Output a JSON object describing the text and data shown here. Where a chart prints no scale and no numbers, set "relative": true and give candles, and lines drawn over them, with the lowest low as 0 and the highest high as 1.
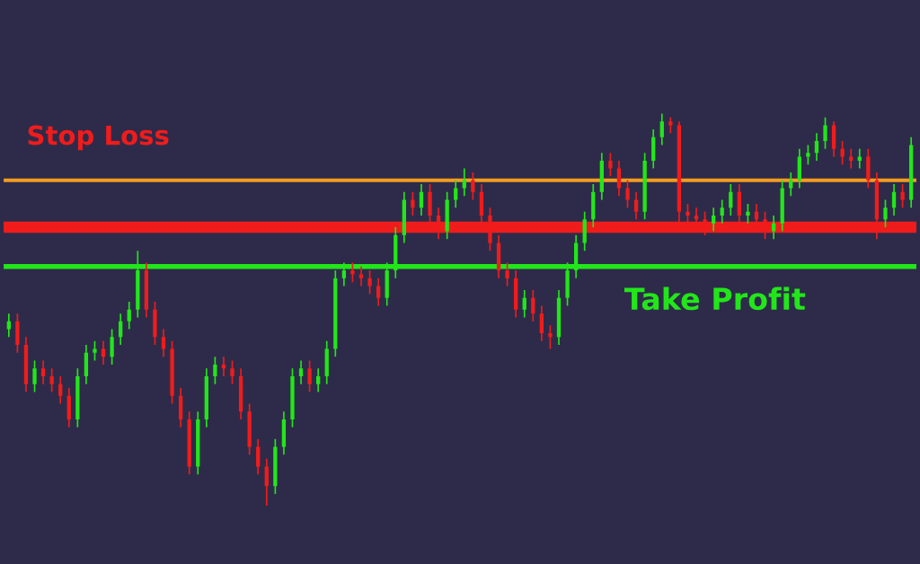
{
  "chart_data": {
    "type": "candlestick",
    "relative": true,
    "categories": [
      null,
      null,
      null,
      null,
      null,
      null,
      null,
      null,
      null,
      null,
      null,
      null,
      null,
      null,
      null,
      null,
      null,
      null,
      null,
      null,
      null,
      null,
      null,
      null,
      null,
      null,
      null,
      null,
      null,
      null,
      null,
      null,
      null,
      null,
      null,
      null,
      null,
      null,
      null,
      null,
      null,
      null,
      null,
      null,
      null,
      null,
      null,
      null,
      null,
      null,
      null,
      null,
      null,
      null,
      null,
      null,
      null,
      null,
      null,
      null,
      null,
      null,
      null,
      null,
      null,
      null,
      null,
      null,
      null,
      null,
      null,
      null,
      null,
      null,
      null,
      null,
      null,
      null,
      null,
      null,
      null,
      null,
      null,
      null,
      null,
      null,
      null,
      null,
      null,
      null,
      null,
      null,
      null,
      null,
      null,
      null,
      null,
      null,
      null,
      null,
      null,
      null,
      null,
      null,
      null,
      null
    ],
    "ohlc": [
      [
        0.45,
        0.49,
        0.43,
        0.47
      ],
      [
        0.47,
        0.49,
        0.39,
        0.41
      ],
      [
        0.41,
        0.43,
        0.29,
        0.31
      ],
      [
        0.31,
        0.37,
        0.29,
        0.35
      ],
      [
        0.35,
        0.37,
        0.31,
        0.33
      ],
      [
        0.33,
        0.35,
        0.29,
        0.31
      ],
      [
        0.31,
        0.33,
        0.26,
        0.28
      ],
      [
        0.28,
        0.3,
        0.2,
        0.22
      ],
      [
        0.22,
        0.35,
        0.2,
        0.33
      ],
      [
        0.33,
        0.41,
        0.31,
        0.39
      ],
      [
        0.39,
        0.42,
        0.37,
        0.4
      ],
      [
        0.4,
        0.42,
        0.36,
        0.38
      ],
      [
        0.38,
        0.45,
        0.36,
        0.43
      ],
      [
        0.43,
        0.49,
        0.41,
        0.47
      ],
      [
        0.47,
        0.52,
        0.45,
        0.5
      ],
      [
        0.5,
        0.65,
        0.48,
        0.6
      ],
      [
        0.6,
        0.62,
        0.48,
        0.5
      ],
      [
        0.5,
        0.52,
        0.41,
        0.43
      ],
      [
        0.43,
        0.45,
        0.38,
        0.4
      ],
      [
        0.4,
        0.42,
        0.26,
        0.28
      ],
      [
        0.28,
        0.3,
        0.2,
        0.22
      ],
      [
        0.22,
        0.24,
        0.08,
        0.1
      ],
      [
        0.1,
        0.24,
        0.08,
        0.22
      ],
      [
        0.22,
        0.35,
        0.2,
        0.33
      ],
      [
        0.33,
        0.38,
        0.31,
        0.36
      ],
      [
        0.36,
        0.38,
        0.33,
        0.35
      ],
      [
        0.35,
        0.37,
        0.31,
        0.33
      ],
      [
        0.33,
        0.35,
        0.22,
        0.24
      ],
      [
        0.24,
        0.26,
        0.13,
        0.15
      ],
      [
        0.15,
        0.17,
        0.08,
        0.1
      ],
      [
        0.1,
        0.12,
        0.0,
        0.05
      ],
      [
        0.05,
        0.17,
        0.03,
        0.15
      ],
      [
        0.15,
        0.24,
        0.13,
        0.22
      ],
      [
        0.22,
        0.35,
        0.2,
        0.33
      ],
      [
        0.33,
        0.37,
        0.31,
        0.35
      ],
      [
        0.35,
        0.37,
        0.29,
        0.31
      ],
      [
        0.31,
        0.35,
        0.29,
        0.33
      ],
      [
        0.33,
        0.42,
        0.31,
        0.4
      ],
      [
        0.4,
        0.6,
        0.38,
        0.58
      ],
      [
        0.58,
        0.62,
        0.56,
        0.6
      ],
      [
        0.6,
        0.62,
        0.57,
        0.59
      ],
      [
        0.59,
        0.61,
        0.56,
        0.58
      ],
      [
        0.58,
        0.6,
        0.54,
        0.56
      ],
      [
        0.56,
        0.58,
        0.51,
        0.53
      ],
      [
        0.53,
        0.62,
        0.51,
        0.6
      ],
      [
        0.6,
        0.71,
        0.58,
        0.69
      ],
      [
        0.69,
        0.8,
        0.67,
        0.78
      ],
      [
        0.78,
        0.8,
        0.74,
        0.76
      ],
      [
        0.76,
        0.82,
        0.74,
        0.8
      ],
      [
        0.8,
        0.82,
        0.72,
        0.74
      ],
      [
        0.74,
        0.76,
        0.68,
        0.7
      ],
      [
        0.7,
        0.8,
        0.68,
        0.78
      ],
      [
        0.78,
        0.83,
        0.76,
        0.81
      ],
      [
        0.81,
        0.86,
        0.79,
        0.83
      ],
      [
        0.83,
        0.85,
        0.78,
        0.8
      ],
      [
        0.8,
        0.82,
        0.72,
        0.74
      ],
      [
        0.74,
        0.76,
        0.65,
        0.67
      ],
      [
        0.67,
        0.69,
        0.58,
        0.6
      ],
      [
        0.6,
        0.62,
        0.56,
        0.58
      ],
      [
        0.58,
        0.6,
        0.48,
        0.5
      ],
      [
        0.5,
        0.55,
        0.48,
        0.53
      ],
      [
        0.53,
        0.55,
        0.47,
        0.49
      ],
      [
        0.49,
        0.51,
        0.42,
        0.44
      ],
      [
        0.44,
        0.46,
        0.4,
        0.43
      ],
      [
        0.43,
        0.55,
        0.41,
        0.53
      ],
      [
        0.53,
        0.62,
        0.51,
        0.6
      ],
      [
        0.6,
        0.69,
        0.58,
        0.67
      ],
      [
        0.67,
        0.75,
        0.65,
        0.73
      ],
      [
        0.73,
        0.82,
        0.71,
        0.8
      ],
      [
        0.8,
        0.9,
        0.78,
        0.88
      ],
      [
        0.88,
        0.9,
        0.84,
        0.86
      ],
      [
        0.86,
        0.88,
        0.79,
        0.81
      ],
      [
        0.81,
        0.83,
        0.76,
        0.78
      ],
      [
        0.78,
        0.8,
        0.73,
        0.75
      ],
      [
        0.75,
        0.9,
        0.73,
        0.88
      ],
      [
        0.88,
        0.96,
        0.86,
        0.94
      ],
      [
        0.94,
        1.0,
        0.92,
        0.98
      ],
      [
        0.98,
        0.99,
        0.95,
        0.97
      ],
      [
        0.97,
        0.98,
        0.72,
        0.75
      ],
      [
        0.75,
        0.77,
        0.72,
        0.74
      ],
      [
        0.74,
        0.76,
        0.71,
        0.73
      ],
      [
        0.73,
        0.75,
        0.69,
        0.72
      ],
      [
        0.72,
        0.76,
        0.7,
        0.74
      ],
      [
        0.74,
        0.78,
        0.72,
        0.76
      ],
      [
        0.76,
        0.82,
        0.74,
        0.8
      ],
      [
        0.8,
        0.82,
        0.72,
        0.74
      ],
      [
        0.74,
        0.77,
        0.72,
        0.75
      ],
      [
        0.75,
        0.77,
        0.71,
        0.73
      ],
      [
        0.73,
        0.75,
        0.68,
        0.7
      ],
      [
        0.7,
        0.74,
        0.68,
        0.72
      ],
      [
        0.72,
        0.83,
        0.7,
        0.81
      ],
      [
        0.81,
        0.85,
        0.79,
        0.83
      ],
      [
        0.83,
        0.91,
        0.81,
        0.89
      ],
      [
        0.89,
        0.92,
        0.87,
        0.9
      ],
      [
        0.9,
        0.95,
        0.88,
        0.93
      ],
      [
        0.93,
        0.99,
        0.91,
        0.97
      ],
      [
        0.97,
        0.98,
        0.89,
        0.91
      ],
      [
        0.91,
        0.93,
        0.87,
        0.89
      ],
      [
        0.89,
        0.91,
        0.86,
        0.88
      ],
      [
        0.88,
        0.91,
        0.86,
        0.89
      ],
      [
        0.89,
        0.91,
        0.81,
        0.83
      ],
      [
        0.83,
        0.85,
        0.68,
        0.73
      ],
      [
        0.73,
        0.78,
        0.71,
        0.76
      ],
      [
        0.76,
        0.82,
        0.74,
        0.8
      ],
      [
        0.8,
        0.82,
        0.76,
        0.78
      ],
      [
        0.78,
        0.94,
        0.76,
        0.92
      ]
    ],
    "colors": [
      "#22e61a",
      "#f01c1c",
      "#f01c1c",
      "#22e61a",
      "#f01c1c",
      "#f01c1c",
      "#f01c1c",
      "#f01c1c",
      "#22e61a",
      "#22e61a",
      "#22e61a",
      "#f01c1c",
      "#22e61a",
      "#22e61a",
      "#22e61a",
      "#22e61a",
      "#f01c1c",
      "#f01c1c",
      "#f01c1c",
      "#f01c1c",
      "#f01c1c",
      "#f01c1c",
      "#22e61a",
      "#22e61a",
      "#22e61a",
      "#f01c1c",
      "#f01c1c",
      "#f01c1c",
      "#f01c1c",
      "#f01c1c",
      "#f01c1c",
      "#22e61a",
      "#22e61a",
      "#22e61a",
      "#22e61a",
      "#f01c1c",
      "#22e61a",
      "#22e61a",
      "#22e61a",
      "#22e61a",
      "#f01c1c",
      "#f01c1c",
      "#f01c1c",
      "#f01c1c",
      "#22e61a",
      "#22e61a",
      "#22e61a",
      "#f01c1c",
      "#22e61a",
      "#f01c1c",
      "#f01c1c",
      "#22e61a",
      "#22e61a",
      "#22e61a",
      "#f01c1c",
      "#f01c1c",
      "#f01c1c",
      "#f01c1c",
      "#f01c1c",
      "#f01c1c",
      "#22e61a",
      "#f01c1c",
      "#f01c1c",
      "#f01c1c",
      "#22e61a",
      "#22e61a",
      "#22e61a",
      "#22e61a",
      "#22e61a",
      "#22e61a",
      "#f01c1c",
      "#f01c1c",
      "#f01c1c",
      "#f01c1c",
      "#22e61a",
      "#22e61a",
      "#22e61a",
      "#f01c1c",
      "#f01c1c",
      "#f01c1c",
      "#f01c1c",
      "#f01c1c",
      "#22e61a",
      "#22e61a",
      "#22e61a",
      "#f01c1c",
      "#22e61a",
      "#f01c1c",
      "#f01c1c",
      "#22e61a",
      "#22e61a",
      "#22e61a",
      "#22e61a",
      "#22e61a",
      "#22e61a",
      "#22e61a",
      "#f01c1c",
      "#f01c1c",
      "#f01c1c",
      "#22e61a",
      "#f01c1c",
      "#f01c1c",
      "#22e61a",
      "#22e61a",
      "#f01c1c",
      "#22e61a"
    ],
    "ref_lines": [
      {
        "axis": "y",
        "value": 0.83,
        "color": "#f39c21"
      },
      {
        "axis": "y",
        "value": 0.71,
        "color": "#f01c1c",
        "label": "Stop Loss"
      },
      {
        "axis": "y",
        "value": 0.61,
        "color": "#22e61a",
        "label": "Take Profit"
      }
    ]
  }
}
